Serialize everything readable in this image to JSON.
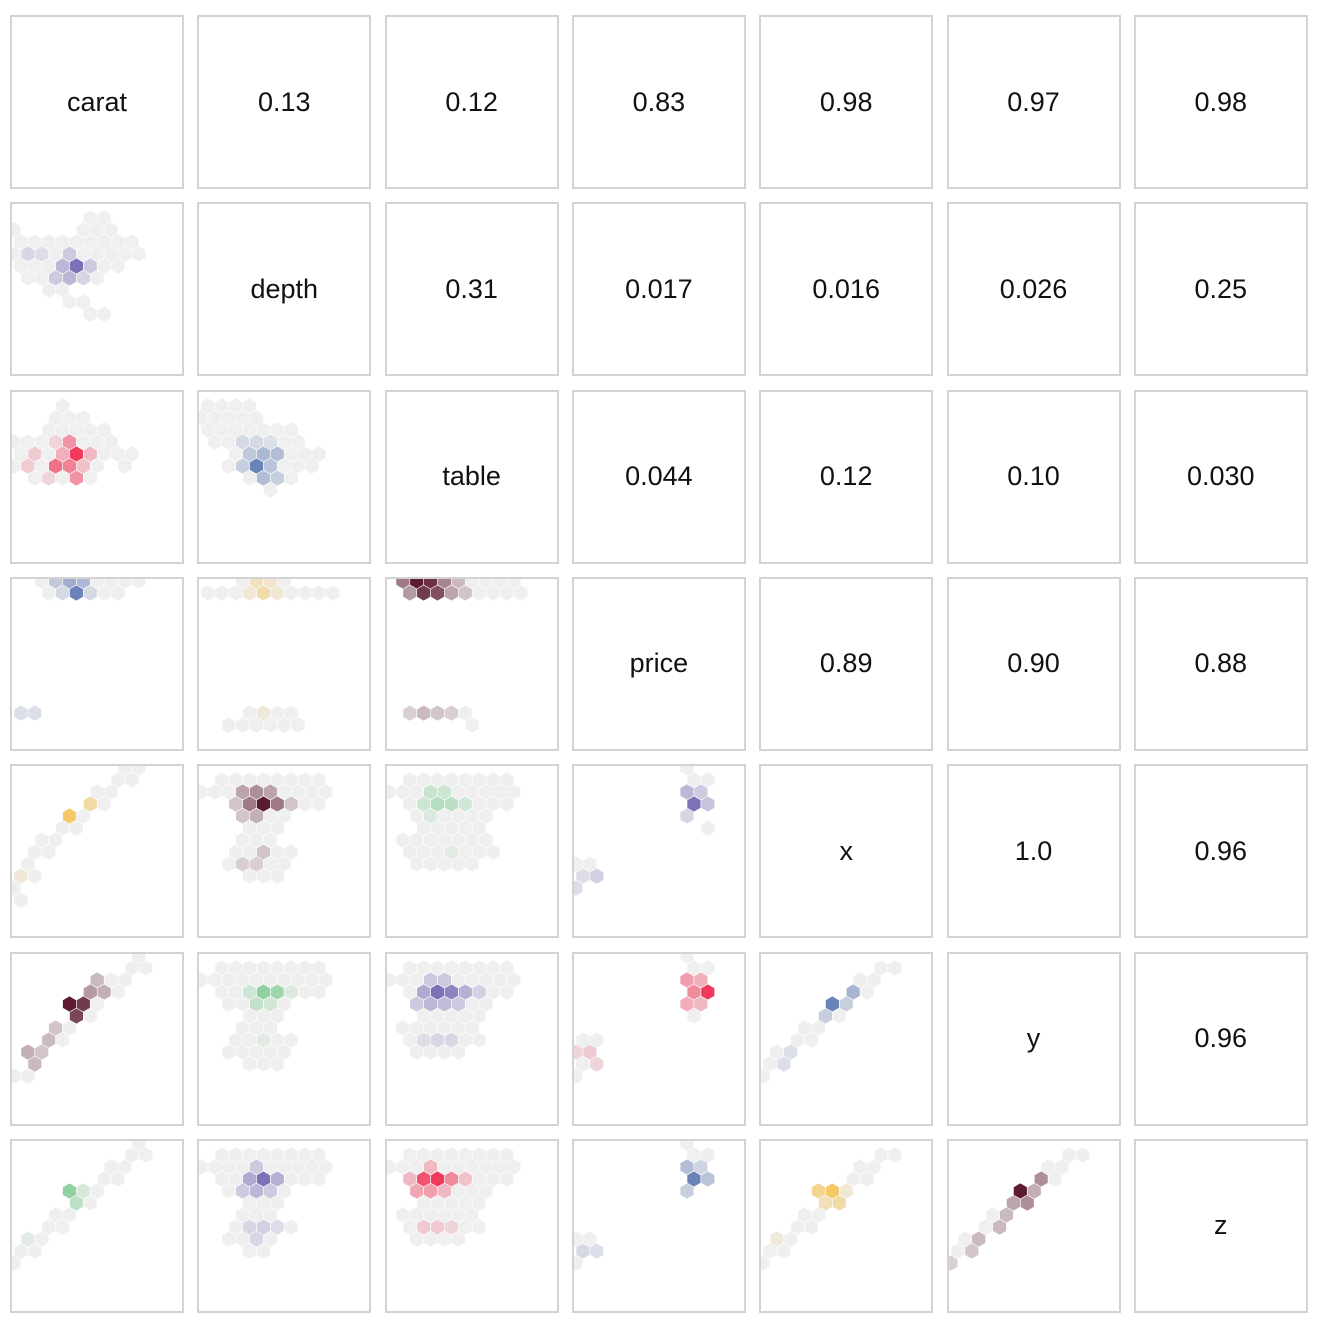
{
  "chart_data": {
    "type": "hexbin-scatter-matrix",
    "variables": [
      "carat",
      "depth",
      "table",
      "price",
      "x",
      "y",
      "z"
    ],
    "upper_correlations": [
      [
        "",
        "0.13",
        "0.12",
        "0.83",
        "0.98",
        "0.97",
        "0.98"
      ],
      [
        "",
        "",
        "0.31",
        "0.017",
        "0.016",
        "0.026",
        "0.25"
      ],
      [
        "",
        "",
        "",
        "0.044",
        "0.12",
        "0.10",
        "0.030"
      ],
      [
        "",
        "",
        "",
        "",
        "0.89",
        "0.90",
        "0.88"
      ],
      [
        "",
        "",
        "",
        "",
        "",
        "1.0",
        "0.96"
      ],
      [
        "",
        "",
        "",
        "",
        "",
        "",
        "0.96"
      ],
      [
        "",
        "",
        "",
        "",
        "",
        "",
        ""
      ]
    ],
    "lower_panel_colors": [
      [],
      [
        "#7b72b8"
      ],
      [
        "#f1395b",
        "#6a83b8"
      ],
      [
        "#6a83b8",
        "#f5c868",
        "#5c1a33"
      ],
      [
        "#f5c868",
        "#5c1a33",
        "#8fd1a0",
        "#7b72b8"
      ],
      [
        "#5c1a33",
        "#8fd1a0",
        "#7b72b8",
        "#f1395b",
        "#6a83b8"
      ],
      [
        "#8fd1a0",
        "#7b72b8",
        "#f1395b",
        "#6a83b8",
        "#f5c868",
        "#5c1a33"
      ]
    ],
    "empty_hex_color": "#efefef",
    "cell_border_color": "#d3d3d3"
  }
}
